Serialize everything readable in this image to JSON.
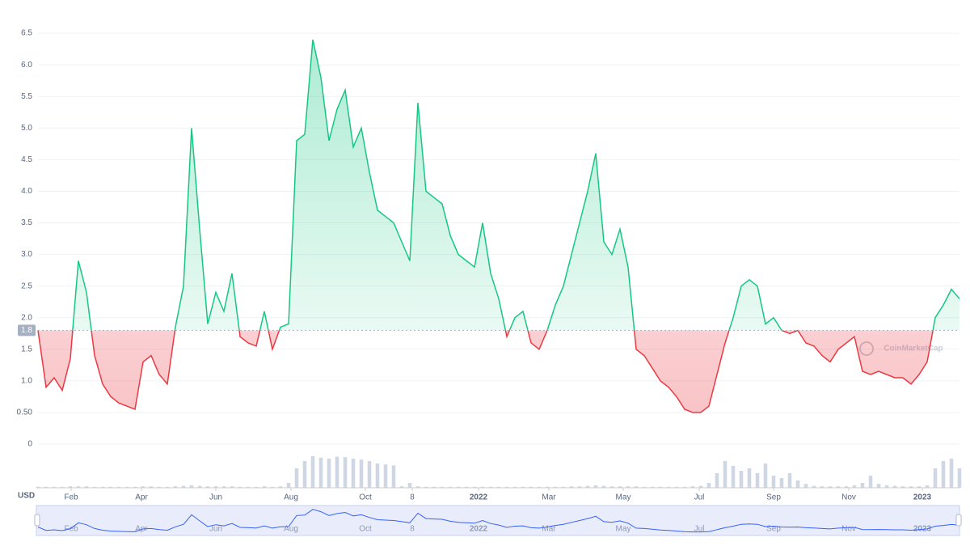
{
  "chart_data": {
    "type": "line",
    "unit_label": "USD",
    "watermark": "CoinMarketCap",
    "baseline": 1.8,
    "up_color": "#16c784",
    "down_color": "#ea3943",
    "ylim": [
      0,
      6.77
    ],
    "yticks": [
      0,
      {
        "value": 0.5,
        "label": "0.50"
      },
      {
        "value": 1,
        "label": "1.0"
      },
      1.5,
      {
        "value": 2,
        "label": "2.0"
      },
      2.5,
      {
        "value": 3,
        "label": "3.0"
      },
      3.5,
      {
        "value": 4,
        "label": "4.0"
      },
      4.5,
      {
        "value": 5,
        "label": "5.0"
      },
      5.5,
      {
        "value": 6,
        "label": "6.0"
      },
      6.5
    ],
    "xlim": [
      0,
      114
    ],
    "xticks": [
      {
        "value": 4.1,
        "label": "Feb"
      },
      {
        "value": 12.8,
        "label": "Apr"
      },
      {
        "value": 22,
        "label": "Jun"
      },
      {
        "value": 31.3,
        "label": "Aug"
      },
      {
        "value": 40.5,
        "label": "Oct"
      },
      {
        "value": 46.3,
        "label": "8"
      },
      {
        "value": 54.5,
        "label": "2022"
      },
      {
        "value": 63.2,
        "label": "Mar"
      },
      {
        "value": 72.4,
        "label": "May"
      },
      {
        "value": 81.8,
        "label": "Jul"
      },
      {
        "value": 91,
        "label": "Sep"
      },
      {
        "value": 100.3,
        "label": "Nov"
      },
      {
        "value": 109.4,
        "label": "2023"
      }
    ],
    "values": [
      1.8,
      0.9,
      1.05,
      0.85,
      1.35,
      2.9,
      2.4,
      1.4,
      0.95,
      0.75,
      0.65,
      0.6,
      0.55,
      1.3,
      1.4,
      1.1,
      0.95,
      1.85,
      2.5,
      5.0,
      3.4,
      1.9,
      2.4,
      2.1,
      2.7,
      1.7,
      1.6,
      1.55,
      2.1,
      1.5,
      1.85,
      1.9,
      4.8,
      4.9,
      6.4,
      5.8,
      4.8,
      5.3,
      5.6,
      4.7,
      5.0,
      4.3,
      3.7,
      3.6,
      3.5,
      3.2,
      2.9,
      5.4,
      4.0,
      3.9,
      3.8,
      3.3,
      3.0,
      2.9,
      2.8,
      3.5,
      2.7,
      2.3,
      1.7,
      2.0,
      2.1,
      1.6,
      1.5,
      1.8,
      2.2,
      2.5,
      3.0,
      3.5,
      4.0,
      4.6,
      3.2,
      3.0,
      3.4,
      2.8,
      1.5,
      1.4,
      1.2,
      1.0,
      0.9,
      0.75,
      0.55,
      0.5,
      0.5,
      0.6,
      1.1,
      1.6,
      2.0,
      2.5,
      2.6,
      2.5,
      1.9,
      2.0,
      1.8,
      1.75,
      1.8,
      1.6,
      1.55,
      1.4,
      1.3,
      1.5,
      1.6,
      1.7,
      1.15,
      1.1,
      1.15,
      1.1,
      1.05,
      1.05,
      0.95,
      1.1,
      1.3,
      2.0,
      2.2,
      2.45,
      2.3
    ],
    "volume": {
      "axis": "y2",
      "color": "#cfd6e4",
      "values": [
        2,
        2,
        2,
        2,
        3,
        3,
        3,
        2,
        2,
        2,
        2,
        2,
        2,
        3,
        3,
        2,
        2,
        3,
        4,
        5,
        4,
        3,
        3,
        3,
        3,
        2,
        2,
        2,
        3,
        2,
        3,
        10,
        40,
        55,
        65,
        62,
        60,
        64,
        63,
        60,
        58,
        55,
        50,
        48,
        46,
        3,
        10,
        3,
        2,
        2,
        2,
        2,
        2,
        2,
        2,
        2,
        2,
        2,
        2,
        2,
        2,
        2,
        2,
        2,
        2,
        2,
        3,
        3,
        4,
        5,
        4,
        3,
        3,
        3,
        3,
        2,
        2,
        2,
        2,
        2,
        2,
        3,
        4,
        10,
        30,
        55,
        45,
        35,
        40,
        30,
        50,
        25,
        20,
        30,
        15,
        8,
        4,
        3,
        3,
        3,
        3,
        5,
        10,
        25,
        8,
        5,
        4,
        3,
        3,
        3,
        5,
        40,
        55,
        60,
        40
      ]
    },
    "y2lim": [
      0,
      100
    ]
  }
}
